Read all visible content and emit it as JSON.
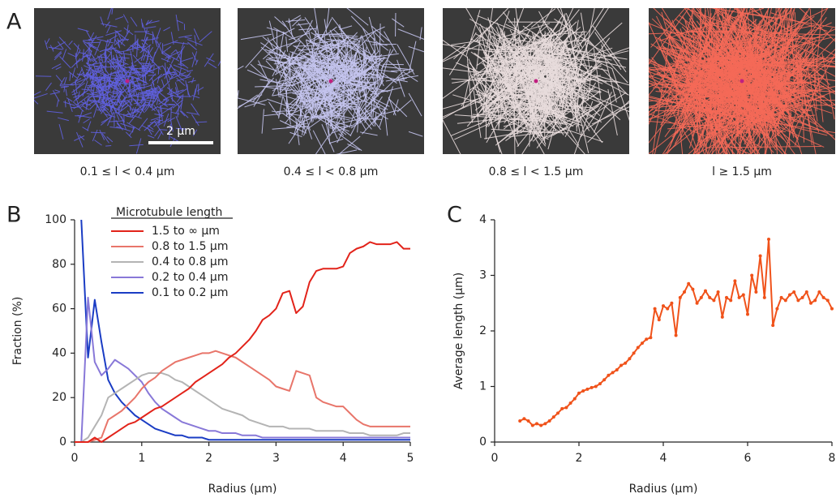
{
  "panel_labels": [
    "A",
    "B",
    "C"
  ],
  "images": {
    "captions": [
      "0.1 ≤ l < 0.4 µm",
      "0.4 ≤ l < 0.8 µm",
      "0.8 ≤ l < 1.5 µm",
      "l ≥ 1.5 µm"
    ],
    "scale_bar": "2 µm"
  },
  "chart_data": [
    {
      "type": "line",
      "x_label": "Radius (µm)",
      "y_label": "Fraction (%)",
      "legend_title": "Microtubule length",
      "xlim": [
        0,
        5
      ],
      "ylim": [
        0,
        100
      ],
      "xticks": [
        0,
        1,
        2,
        3,
        4,
        5
      ],
      "yticks": [
        0,
        20,
        40,
        60,
        80,
        100
      ],
      "x": [
        0,
        0.1,
        0.2,
        0.3,
        0.4,
        0.5,
        0.6,
        0.7,
        0.8,
        0.9,
        1.0,
        1.1,
        1.2,
        1.3,
        1.4,
        1.5,
        1.6,
        1.7,
        1.8,
        1.9,
        2.0,
        2.1,
        2.2,
        2.3,
        2.4,
        2.5,
        2.6,
        2.7,
        2.8,
        2.9,
        3.0,
        3.1,
        3.2,
        3.3,
        3.4,
        3.5,
        3.6,
        3.7,
        3.8,
        3.9,
        4.0,
        4.1,
        4.2,
        4.3,
        4.4,
        4.5,
        4.6,
        4.7,
        4.8,
        4.9,
        5.0
      ],
      "series": [
        {
          "name": "1.5 to  ∞  µm",
          "color": "#e2231a",
          "values": [
            0,
            0,
            0,
            2,
            0,
            2,
            4,
            6,
            8,
            9,
            11,
            13,
            15,
            16,
            18,
            20,
            22,
            24,
            27,
            29,
            31,
            33,
            35,
            38,
            40,
            43,
            46,
            50,
            55,
            57,
            60,
            67,
            68,
            58,
            61,
            72,
            77,
            78,
            78,
            78,
            79,
            85,
            87,
            88,
            90,
            89,
            89,
            89,
            90,
            87,
            87
          ]
        },
        {
          "name": "0.8 to 1.5 µm",
          "color": "#e8756a",
          "values": [
            0,
            0,
            0,
            1,
            2,
            10,
            12,
            14,
            17,
            20,
            24,
            27,
            29,
            32,
            34,
            36,
            37,
            38,
            39,
            40,
            40,
            41,
            40,
            39,
            38,
            36,
            34,
            32,
            30,
            28,
            25,
            24,
            23,
            32,
            31,
            30,
            20,
            18,
            17,
            16,
            16,
            13,
            10,
            8,
            7,
            7,
            7,
            7,
            7,
            7,
            7
          ]
        },
        {
          "name": "0.4 to 0.8 µm",
          "color": "#b4b4b4",
          "values": [
            0,
            0,
            2,
            7,
            12,
            20,
            22,
            24,
            26,
            28,
            30,
            31,
            31,
            31,
            30,
            28,
            27,
            25,
            23,
            21,
            19,
            17,
            15,
            14,
            13,
            12,
            10,
            9,
            8,
            7,
            7,
            7,
            6,
            6,
            6,
            6,
            5,
            5,
            5,
            5,
            5,
            4,
            4,
            4,
            3,
            3,
            3,
            3,
            3,
            4,
            4
          ]
        },
        {
          "name": "0.2 to 0.4 µm",
          "color": "#8878d8",
          "values": [
            0,
            0,
            65,
            36,
            30,
            33,
            37,
            35,
            33,
            30,
            27,
            22,
            18,
            15,
            13,
            11,
            9,
            8,
            7,
            6,
            5,
            5,
            4,
            4,
            4,
            3,
            3,
            3,
            2,
            2,
            2,
            2,
            2,
            2,
            2,
            2,
            2,
            2,
            2,
            2,
            2,
            2,
            2,
            2,
            2,
            2,
            2,
            2,
            2,
            2,
            2
          ]
        },
        {
          "name": "0.1 to 0.2 µm",
          "color": "#1a3cc4",
          "values": [
            null,
            100,
            38,
            64,
            45,
            28,
            22,
            18,
            15,
            12,
            10,
            8,
            6,
            5,
            4,
            3,
            3,
            2,
            2,
            2,
            1,
            1,
            1,
            1,
            1,
            1,
            1,
            1,
            1,
            1,
            1,
            1,
            1,
            1,
            1,
            1,
            1,
            1,
            1,
            1,
            1,
            1,
            1,
            1,
            1,
            1,
            1,
            1,
            1,
            1,
            1
          ]
        }
      ]
    },
    {
      "type": "line",
      "x_label": "Radius (µm)",
      "y_label": "Average length (µm)",
      "markers": true,
      "xlim": [
        0,
        8
      ],
      "ylim": [
        0,
        4
      ],
      "xticks": [
        0,
        2,
        4,
        6,
        8
      ],
      "yticks": [
        0,
        1,
        2,
        3,
        4
      ],
      "x": [
        0.6,
        0.7,
        0.8,
        0.9,
        1.0,
        1.1,
        1.2,
        1.3,
        1.4,
        1.5,
        1.6,
        1.7,
        1.8,
        1.9,
        2.0,
        2.1,
        2.2,
        2.3,
        2.4,
        2.5,
        2.6,
        2.7,
        2.8,
        2.9,
        3.0,
        3.1,
        3.2,
        3.3,
        3.4,
        3.5,
        3.6,
        3.7,
        3.8,
        3.9,
        4.0,
        4.1,
        4.2,
        4.3,
        4.4,
        4.5,
        4.6,
        4.7,
        4.8,
        4.9,
        5.0,
        5.1,
        5.2,
        5.3,
        5.4,
        5.5,
        5.6,
        5.7,
        5.8,
        5.9,
        6.0,
        6.1,
        6.2,
        6.3,
        6.4,
        6.5,
        6.6,
        6.7,
        6.8,
        6.9,
        7.0,
        7.1,
        7.2,
        7.3,
        7.4,
        7.5,
        7.6,
        7.7,
        7.8,
        7.9,
        8.0
      ],
      "series": [
        {
          "color": "#f0521a",
          "values": [
            0.38,
            0.42,
            0.38,
            0.3,
            0.33,
            0.3,
            0.33,
            0.38,
            0.45,
            0.52,
            0.6,
            0.62,
            0.7,
            0.78,
            0.88,
            0.92,
            0.95,
            0.98,
            1.0,
            1.05,
            1.12,
            1.2,
            1.25,
            1.3,
            1.38,
            1.42,
            1.5,
            1.6,
            1.7,
            1.78,
            1.85,
            1.88,
            2.4,
            2.2,
            2.45,
            2.4,
            2.5,
            1.92,
            2.6,
            2.7,
            2.85,
            2.75,
            2.5,
            2.6,
            2.72,
            2.6,
            2.55,
            2.7,
            2.25,
            2.6,
            2.55,
            2.9,
            2.6,
            2.65,
            2.3,
            3.0,
            2.7,
            3.35,
            2.6,
            3.65,
            2.1,
            2.4,
            2.6,
            2.55,
            2.65,
            2.7,
            2.55,
            2.6,
            2.7,
            2.5,
            2.55,
            2.7,
            2.6,
            2.55,
            2.4
          ]
        }
      ]
    }
  ]
}
